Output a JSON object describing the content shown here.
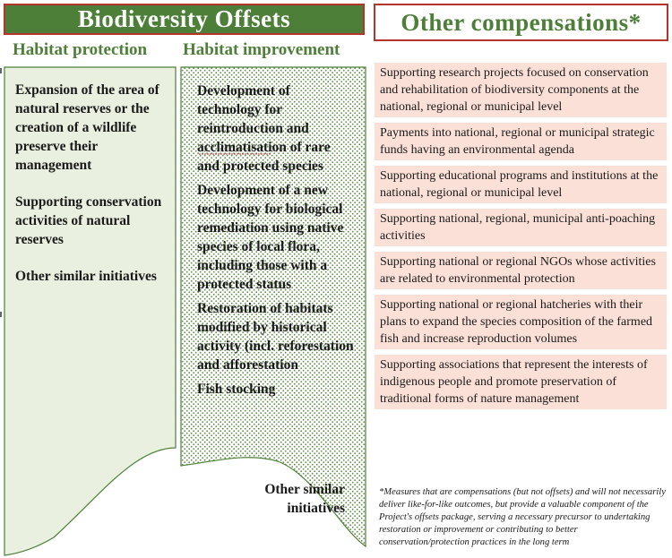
{
  "header_offsets": "Biodiversity Offsets",
  "header_other": "Other compensations*",
  "col1": {
    "title": "Habitat protection",
    "items": [
      "Expansion of the area of natural reserves or the creation of a wildlife preserve their management",
      "Supporting conservation activities of natural reserves",
      "Other similar initiatives"
    ]
  },
  "col2": {
    "title": "Habitat improvement",
    "items": [
      "Development of technology for reintroduction and acclimatisation of rare and protected species",
      "Development of a new technology for biological remediation using native species of local flora, including those with a protected status",
      "Restoration of habitats modified by historical activity (incl. reforestation and afforestation",
      "Fish stocking"
    ],
    "last": "Other similar initiatives"
  },
  "compensations": [
    "Supporting research projects focused on conservation and rehabilitation of biodiversity components at the national, regional or municipal level",
    "Payments into national, regional or municipal strategic funds having an environmental agenda",
    "Supporting educational programs and institutions at the national, regional or municipal level",
    "Supporting national, regional, municipal anti-poaching activities",
    "Supporting national or regional NGOs whose activities are related to environmental protection",
    "Supporting national or regional hatcheries with their plans to expand the species composition of the farmed fish and increase reproduction volumes",
    "Supporting associations that represent the interests of indigenous people and promote preservation of traditional forms of nature management"
  ],
  "footnote": "*Measures that are compensations (but not offsets) and will not necessarily deliver like-for-like outcomes, but provide a valuable component of the Project's offsets package, serving a necessary precursor to undertaking restoration or improvement or contributing to better conservation/protection practices in the long term",
  "colors": {
    "green": "#4d7f38",
    "green_fill": "#e9f0e0",
    "red_border": "#b5342b",
    "pink_box": "#fbe0d7"
  }
}
